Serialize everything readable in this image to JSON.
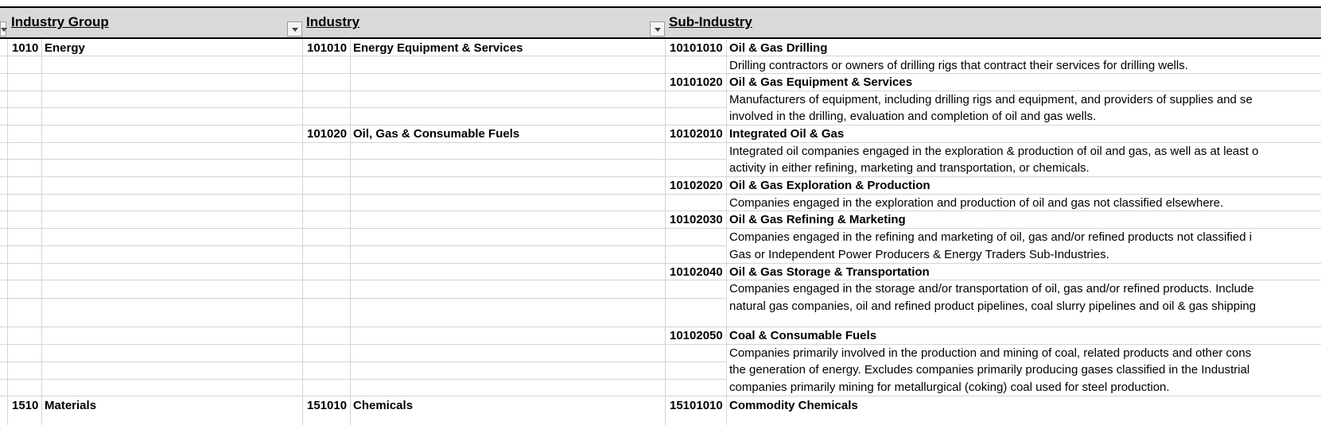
{
  "headers": {
    "industry_group": "Industry Group",
    "industry": "Industry",
    "sub_industry": "Sub-Industry"
  },
  "rows": {
    "group_code": "1010",
    "group_name": "Energy",
    "industry_1_code": "101010",
    "industry_1_name": "Energy Equipment & Services",
    "industry_2_code": "101020",
    "industry_2_name": "Oil, Gas & Consumable Fuels",
    "sub_1_code": "10101010",
    "sub_1_name": "Oil & Gas Drilling",
    "sub_1_desc_1": "Drilling contractors or owners of drilling rigs that contract their services for drilling wells.",
    "sub_2_code": "10101020",
    "sub_2_name": "Oil & Gas Equipment & Services",
    "sub_2_desc_1": "Manufacturers of equipment, including drilling rigs and equipment, and providers of supplies and se",
    "sub_2_desc_2": "involved in the drilling, evaluation and completion of oil and gas wells.",
    "sub_3_code": "10102010",
    "sub_3_name": "Integrated Oil & Gas",
    "sub_3_desc_1": "Integrated oil companies engaged in the exploration & production of oil and gas, as well as at least o",
    "sub_3_desc_2": "activity in either refining, marketing and transportation, or chemicals.",
    "sub_4_code": "10102020",
    "sub_4_name": "Oil & Gas Exploration & Production",
    "sub_4_desc_1": "Companies engaged in the exploration and production of oil and gas not classified elsewhere.",
    "sub_5_code": "10102030",
    "sub_5_name": "Oil & Gas Refining & Marketing",
    "sub_5_desc_1": "Companies engaged in the refining and marketing of oil, gas and/or refined products not classified i",
    "sub_5_desc_2": "Gas or Independent Power Producers & Energy Traders Sub-Industries.",
    "sub_6_code": "10102040",
    "sub_6_name": "Oil & Gas Storage & Transportation",
    "sub_6_desc_1": "Companies engaged in the storage and/or transportation of oil, gas and/or refined products. Include",
    "sub_6_desc_2": "natural gas companies, oil and refined product pipelines, coal slurry pipelines and oil & gas shipping",
    "sub_7_code": "10102050",
    "sub_7_name": "Coal & Consumable Fuels",
    "sub_7_desc_1": "Companies primarily involved in the production and mining of coal, related products and other cons",
    "sub_7_desc_2": "the generation of energy.  Excludes companies primarily producing gases classified in the Industrial",
    "sub_7_desc_3": "companies primarily mining for metallurgical (coking) coal used for steel production.",
    "next_group_code": "1510",
    "next_group_name": "Materials",
    "next_industry_code": "151010",
    "next_industry_name": "Chemicals",
    "next_sub_code": "15101010",
    "next_sub_name": "Commodity Chemicals"
  },
  "colors": {
    "header_bg": "#d9d9d9",
    "gridline": "#d4d4d4"
  },
  "icons": {
    "filter": "filter-dropdown-icon"
  }
}
